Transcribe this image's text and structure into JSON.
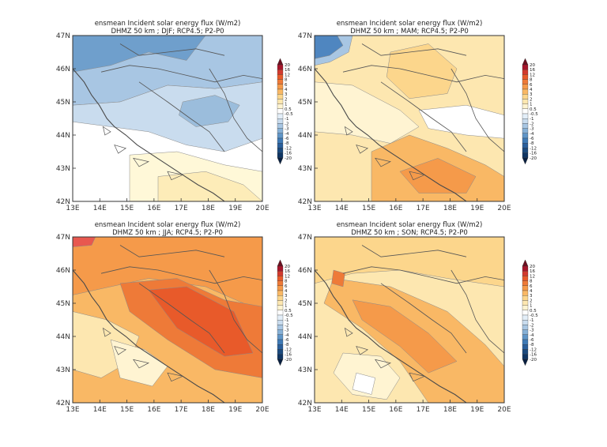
{
  "panels": [
    {
      "title_line1": "ensmean Incident solar energy flux (W/m2)",
      "title_line2": "DHMZ 50 km ; DJF; RCP4.5; P2-P0",
      "season": "DJF",
      "base_color": "#ffffff",
      "regions": [
        {
          "color": "#a8c6e3",
          "pts": [
            [
              0,
              0
            ],
            [
              1,
              0
            ],
            [
              1,
              0.28
            ],
            [
              0.75,
              0.32
            ],
            [
              0.5,
              0.3
            ],
            [
              0.25,
              0.4
            ],
            [
              0,
              0.42
            ]
          ]
        },
        {
          "color": "#6f9fcc",
          "pts": [
            [
              0,
              0
            ],
            [
              0.7,
              0
            ],
            [
              0.6,
              0.15
            ],
            [
              0.4,
              0.1
            ],
            [
              0.2,
              0.18
            ],
            [
              0,
              0.22
            ]
          ]
        },
        {
          "color": "#c9dcee",
          "pts": [
            [
              0,
              0.42
            ],
            [
              0.25,
              0.4
            ],
            [
              0.5,
              0.3
            ],
            [
              0.75,
              0.32
            ],
            [
              1,
              0.28
            ],
            [
              1,
              0.62
            ],
            [
              0.8,
              0.7
            ],
            [
              0.6,
              0.66
            ],
            [
              0.4,
              0.58
            ],
            [
              0.2,
              0.55
            ],
            [
              0,
              0.52
            ]
          ]
        },
        {
          "color": "#9bbddc",
          "pts": [
            [
              0.58,
              0.4
            ],
            [
              0.75,
              0.36
            ],
            [
              0.88,
              0.42
            ],
            [
              0.82,
              0.52
            ],
            [
              0.65,
              0.55
            ],
            [
              0.56,
              0.48
            ]
          ]
        },
        {
          "color": "#fff8d8",
          "pts": [
            [
              0.3,
              0.72
            ],
            [
              0.55,
              0.7
            ],
            [
              0.8,
              0.78
            ],
            [
              1,
              0.82
            ],
            [
              1,
              1
            ],
            [
              0.3,
              1
            ]
          ]
        },
        {
          "color": "#fdecb8",
          "pts": [
            [
              0.45,
              0.85
            ],
            [
              0.7,
              0.82
            ],
            [
              0.9,
              0.9
            ],
            [
              1,
              1
            ],
            [
              0.45,
              1
            ]
          ]
        }
      ]
    },
    {
      "title_line1": "ensmean Incident solar energy flux (W/m2)",
      "title_line2": "DHMZ 50 km ; MAM; RCP4.5; P2-P0",
      "season": "MAM",
      "base_color": "#fde7b0",
      "regions": [
        {
          "color": "#fcd68c",
          "pts": [
            [
              0.4,
              0.1
            ],
            [
              0.6,
              0.05
            ],
            [
              0.75,
              0.2
            ],
            [
              0.7,
              0.35
            ],
            [
              0.5,
              0.38
            ],
            [
              0.38,
              0.25
            ]
          ]
        },
        {
          "color": "#fff4d2",
          "pts": [
            [
              0,
              0.28
            ],
            [
              0.2,
              0.3
            ],
            [
              0.45,
              0.45
            ],
            [
              0.55,
              0.55
            ],
            [
              0.4,
              0.65
            ],
            [
              0.2,
              0.6
            ],
            [
              0,
              0.58
            ]
          ]
        },
        {
          "color": "#ffffff",
          "pts": [
            [
              0.55,
              0.45
            ],
            [
              0.8,
              0.42
            ],
            [
              1,
              0.48
            ],
            [
              1,
              0.62
            ],
            [
              0.8,
              0.6
            ],
            [
              0.6,
              0.56
            ]
          ]
        },
        {
          "color": "#f9b865",
          "pts": [
            [
              0.3,
              0.7
            ],
            [
              0.5,
              0.6
            ],
            [
              0.7,
              0.68
            ],
            [
              0.9,
              0.78
            ],
            [
              1,
              0.85
            ],
            [
              1,
              1
            ],
            [
              0.3,
              1
            ]
          ]
        },
        {
          "color": "#f59a4a",
          "pts": [
            [
              0.45,
              0.82
            ],
            [
              0.65,
              0.74
            ],
            [
              0.85,
              0.85
            ],
            [
              0.8,
              0.95
            ],
            [
              0.55,
              0.95
            ]
          ]
        },
        {
          "color": "#4f86c0",
          "pts": [
            [
              0,
              0
            ],
            [
              0.12,
              0
            ],
            [
              0.15,
              0.06
            ],
            [
              0.08,
              0.12
            ],
            [
              0,
              0.14
            ]
          ]
        },
        {
          "color": "#a8c6e3",
          "pts": [
            [
              0.12,
              0
            ],
            [
              0.2,
              0
            ],
            [
              0.18,
              0.1
            ],
            [
              0.08,
              0.16
            ],
            [
              0,
              0.18
            ],
            [
              0,
              0.14
            ],
            [
              0.08,
              0.12
            ],
            [
              0.15,
              0.06
            ]
          ]
        }
      ]
    },
    {
      "title_line1": "ensmean Incident solar energy flux (W/m2)",
      "title_line2": "DHMZ 50 km ; JJA; RCP4.5; P2-P0",
      "season": "JJA",
      "base_color": "#f9b865",
      "regions": [
        {
          "color": "#f59a4a",
          "pts": [
            [
              0,
              0
            ],
            [
              1,
              0
            ],
            [
              1,
              0.45
            ],
            [
              0.7,
              0.3
            ],
            [
              0.4,
              0.25
            ],
            [
              0.2,
              0.3
            ],
            [
              0,
              0.35
            ]
          ]
        },
        {
          "color": "#ee7a38",
          "pts": [
            [
              0.25,
              0.28
            ],
            [
              0.55,
              0.25
            ],
            [
              0.8,
              0.38
            ],
            [
              1,
              0.42
            ],
            [
              1,
              0.85
            ],
            [
              0.75,
              0.8
            ],
            [
              0.5,
              0.62
            ],
            [
              0.3,
              0.45
            ]
          ]
        },
        {
          "color": "#e85a2a",
          "pts": [
            [
              0.4,
              0.32
            ],
            [
              0.6,
              0.3
            ],
            [
              0.85,
              0.45
            ],
            [
              0.95,
              0.7
            ],
            [
              0.8,
              0.72
            ],
            [
              0.55,
              0.55
            ]
          ]
        },
        {
          "color": "#fde7b0",
          "pts": [
            [
              0,
              0.45
            ],
            [
              0.18,
              0.5
            ],
            [
              0.35,
              0.6
            ],
            [
              0.3,
              0.75
            ],
            [
              0.15,
              0.85
            ],
            [
              0,
              0.8
            ]
          ]
        },
        {
          "color": "#fff4d2",
          "pts": [
            [
              0.2,
              0.62
            ],
            [
              0.38,
              0.68
            ],
            [
              0.5,
              0.78
            ],
            [
              0.42,
              0.9
            ],
            [
              0.25,
              0.85
            ]
          ]
        },
        {
          "color": "#e8584f",
          "pts": [
            [
              0,
              0
            ],
            [
              0.12,
              0
            ],
            [
              0.1,
              0.05
            ],
            [
              0,
              0.06
            ]
          ]
        }
      ]
    },
    {
      "title_line1": "ensmean Incident solar energy flux (W/m2)",
      "title_line2": "DHMZ 50 km ; SON; RCP4.5; P2-P0",
      "season": "SON",
      "base_color": "#fde7b0",
      "regions": [
        {
          "color": "#fcd68c",
          "pts": [
            [
              0,
              0
            ],
            [
              1,
              0
            ],
            [
              1,
              0.3
            ],
            [
              0.7,
              0.25
            ],
            [
              0.45,
              0.2
            ],
            [
              0.2,
              0.22
            ],
            [
              0,
              0.28
            ]
          ]
        },
        {
          "color": "#f9b865",
          "pts": [
            [
              0.1,
              0.25
            ],
            [
              0.4,
              0.3
            ],
            [
              0.7,
              0.45
            ],
            [
              0.9,
              0.65
            ],
            [
              1,
              0.78
            ],
            [
              1,
              1
            ],
            [
              0.6,
              1
            ],
            [
              0.45,
              0.75
            ],
            [
              0.25,
              0.55
            ],
            [
              0.05,
              0.4
            ]
          ]
        },
        {
          "color": "#f59a4a",
          "pts": [
            [
              0.2,
              0.38
            ],
            [
              0.4,
              0.42
            ],
            [
              0.6,
              0.58
            ],
            [
              0.75,
              0.75
            ],
            [
              0.6,
              0.82
            ],
            [
              0.45,
              0.66
            ],
            [
              0.25,
              0.5
            ]
          ]
        },
        {
          "color": "#fff4d2",
          "pts": [
            [
              0.15,
              0.7
            ],
            [
              0.35,
              0.72
            ],
            [
              0.45,
              0.85
            ],
            [
              0.38,
              0.98
            ],
            [
              0.2,
              0.95
            ],
            [
              0.1,
              0.82
            ]
          ]
        },
        {
          "color": "#ffffff",
          "pts": [
            [
              0.22,
              0.82
            ],
            [
              0.32,
              0.85
            ],
            [
              0.3,
              0.95
            ],
            [
              0.2,
              0.92
            ]
          ]
        },
        {
          "color": "#ee7a38",
          "pts": [
            [
              0.1,
              0.2
            ],
            [
              0.16,
              0.22
            ],
            [
              0.15,
              0.3
            ],
            [
              0.09,
              0.28
            ]
          ]
        }
      ]
    }
  ],
  "axes": {
    "lon_ticks": [
      "13E",
      "14E",
      "15E",
      "16E",
      "17E",
      "18E",
      "19E",
      "20E"
    ],
    "lat_ticks": [
      "47N",
      "46N",
      "45N",
      "44N",
      "43N",
      "42N"
    ]
  },
  "colorbar": {
    "labels": [
      "20",
      "16",
      "12",
      "8",
      "6",
      "4",
      "3",
      "2",
      "1",
      "0.5",
      "-0.5",
      "-1",
      "-2",
      "-3",
      "-4",
      "-6",
      "-8",
      "-12",
      "-16",
      "-20"
    ],
    "colors": [
      "#6b0f1f",
      "#a6162b",
      "#d23a2e",
      "#e85a2a",
      "#ee7a38",
      "#f59a4a",
      "#f9b865",
      "#fcd68c",
      "#fde7b0",
      "#fff4d2",
      "#ffffff",
      "#e3eef8",
      "#c9dcee",
      "#a8c6e3",
      "#86b0d6",
      "#5f95c7",
      "#3f7ab5",
      "#2a5f9b",
      "#1b4a7e",
      "#0f3563",
      "#081f40"
    ]
  }
}
